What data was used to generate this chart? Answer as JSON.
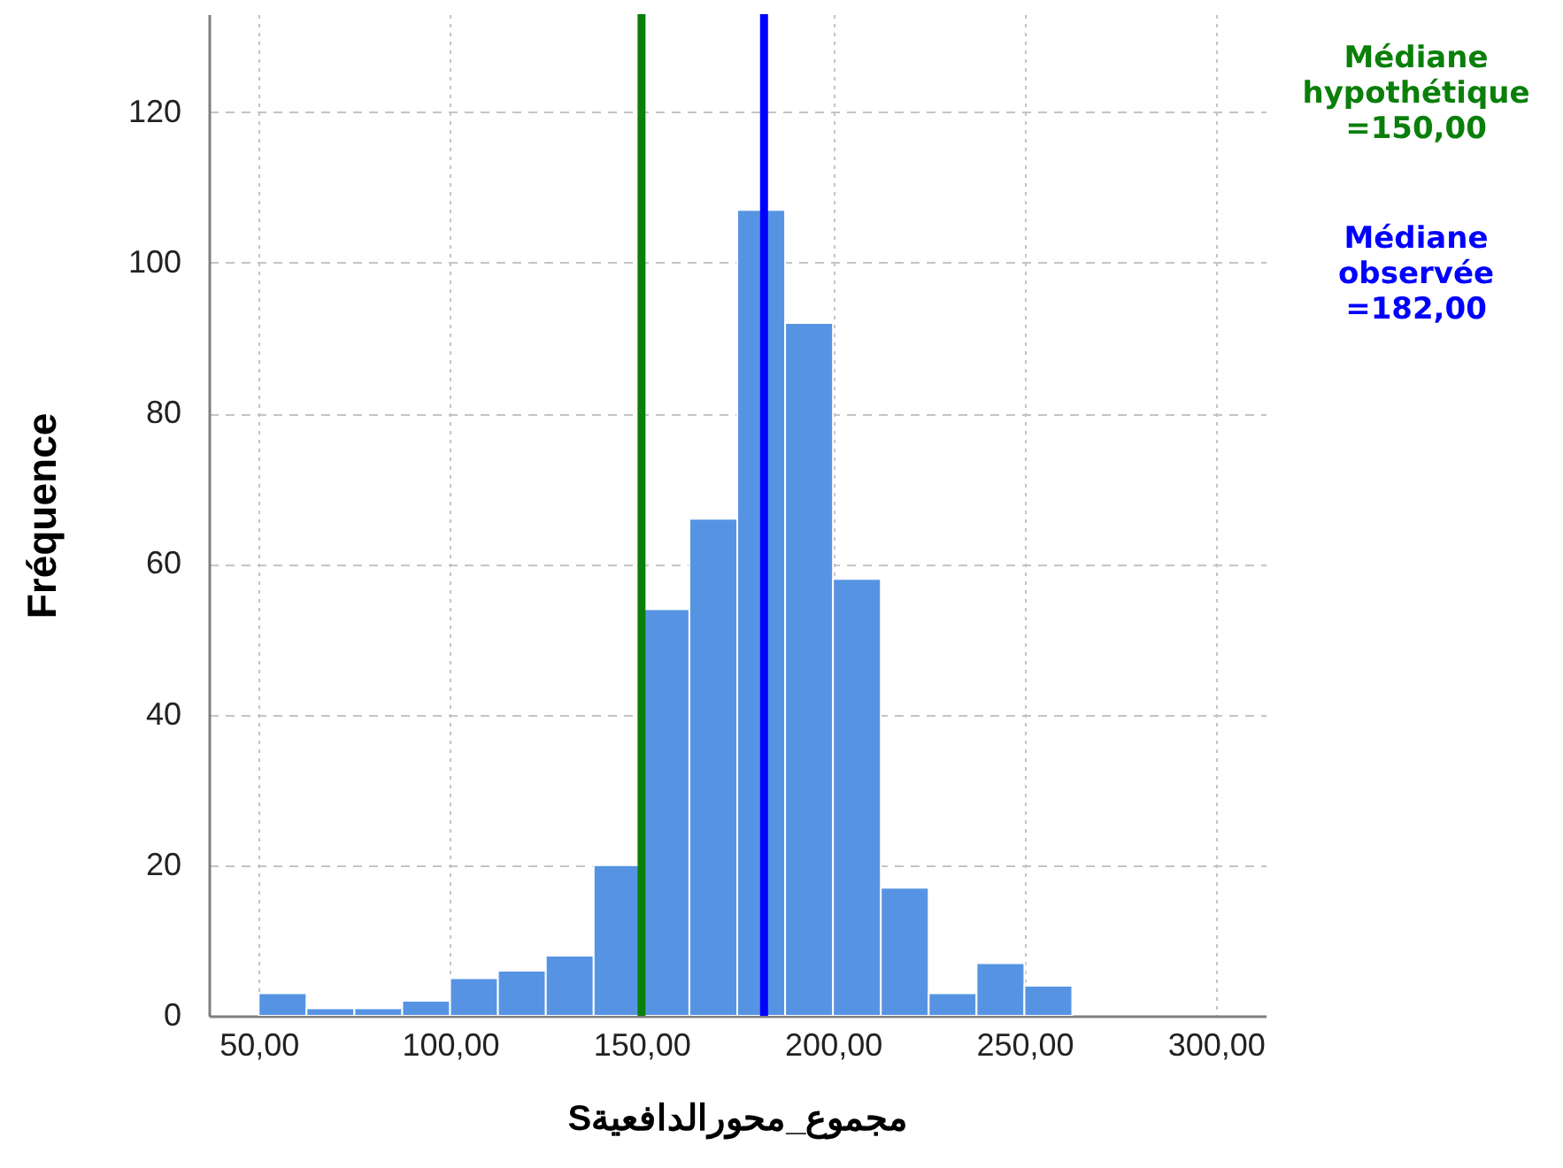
{
  "chart_data": {
    "type": "histogram",
    "xlabel": "مجموع_محورالدافعيةS",
    "ylabel": "Fréquence",
    "bins": [
      50,
      62.5,
      75,
      87.5,
      100,
      112.5,
      125,
      137.5,
      150,
      162.5,
      175,
      187.5,
      200,
      212.5,
      225,
      237.5,
      250,
      262.5
    ],
    "values": [
      3,
      1,
      1,
      2,
      5,
      6,
      8,
      20,
      54,
      66,
      107,
      92,
      58,
      17,
      3,
      7,
      4
    ],
    "color": "#5694e3",
    "xlim": [
      37,
      313
    ],
    "ylim": [
      0,
      133
    ],
    "xticks": [
      {
        "value": 50,
        "label": "50,00"
      },
      {
        "value": 100,
        "label": "100,00"
      },
      {
        "value": 150,
        "label": "150,00"
      },
      {
        "value": 200,
        "label": "200,00"
      },
      {
        "value": 250,
        "label": "250,00"
      },
      {
        "value": 300,
        "label": "300,00"
      }
    ],
    "yticks": [
      0,
      20,
      40,
      60,
      80,
      100,
      120
    ],
    "grid": true,
    "ref_lines": [
      {
        "axis": "x",
        "value": 150,
        "label": "Médiane hypothétique =150,00",
        "color": "#0a7f0a"
      },
      {
        "axis": "x",
        "value": 182,
        "label": "Médiane observée =182,00",
        "color": "#0000ff"
      }
    ]
  }
}
